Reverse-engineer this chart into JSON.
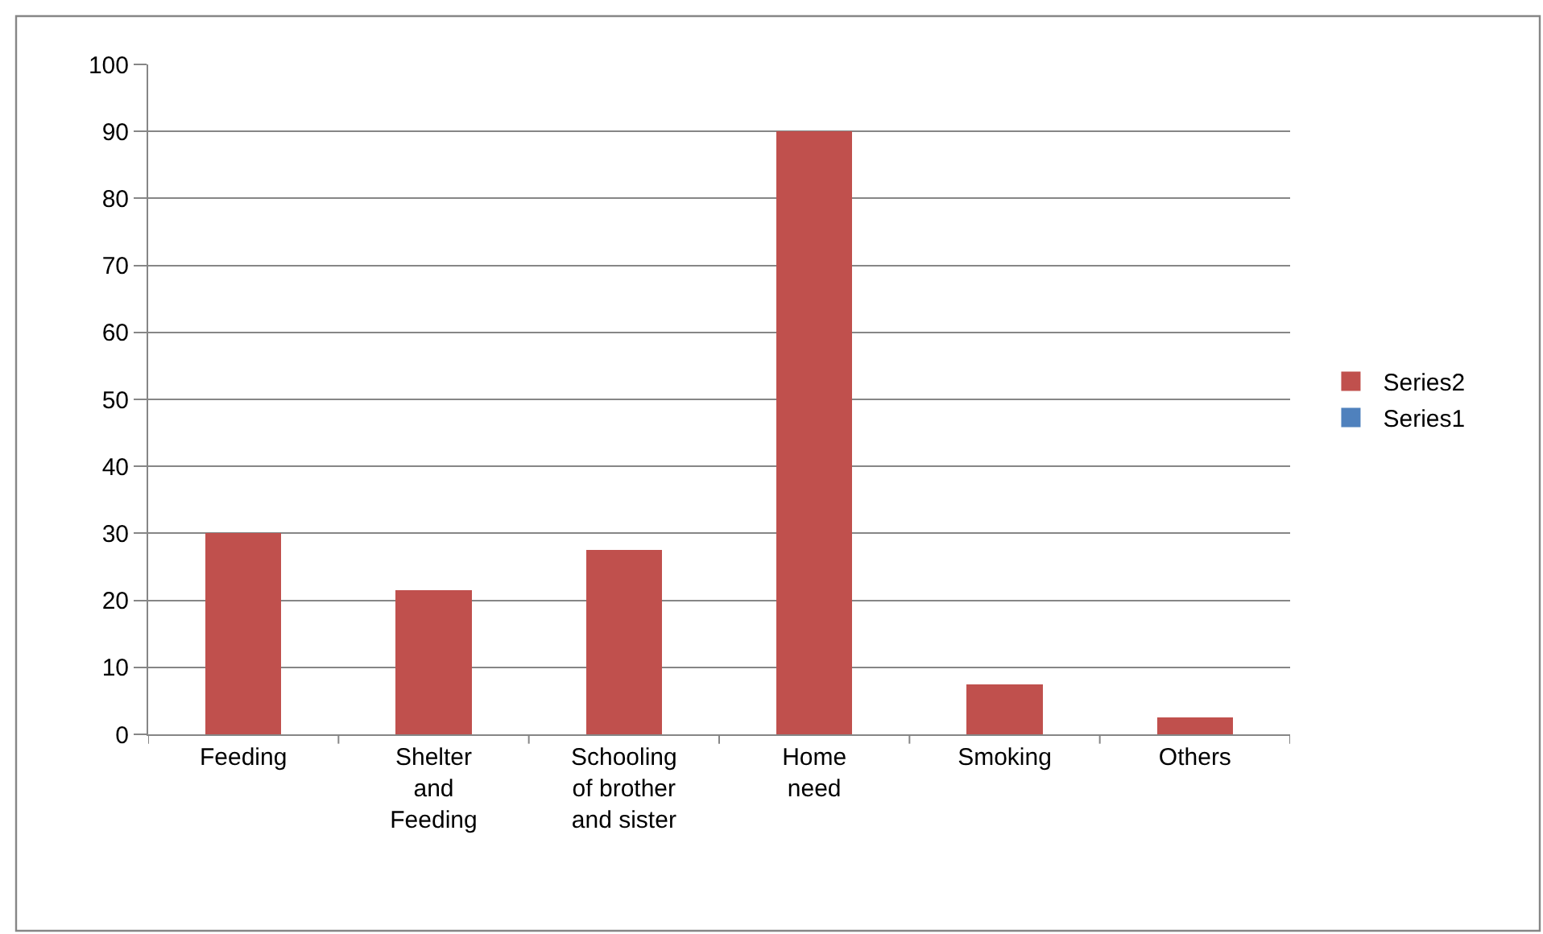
{
  "chart_data": {
    "type": "bar",
    "stacked": true,
    "categories": [
      "Feeding",
      "Shelter and Feeding",
      "Schooling of brother and sister",
      "Home need",
      "Smoking",
      "Others"
    ],
    "series": [
      {
        "name": "Series1",
        "color": "#4f81bd",
        "values": [
          null,
          null,
          null,
          null,
          null,
          null
        ]
      },
      {
        "name": "Series2",
        "color": "#c0504d",
        "values": [
          30,
          21.5,
          27.5,
          90,
          7.5,
          2.5
        ]
      }
    ],
    "ylim": [
      0,
      100
    ],
    "yticks": [
      0,
      10,
      20,
      30,
      40,
      50,
      60,
      70,
      80,
      90,
      100
    ],
    "grid": "y",
    "legend": "right"
  }
}
